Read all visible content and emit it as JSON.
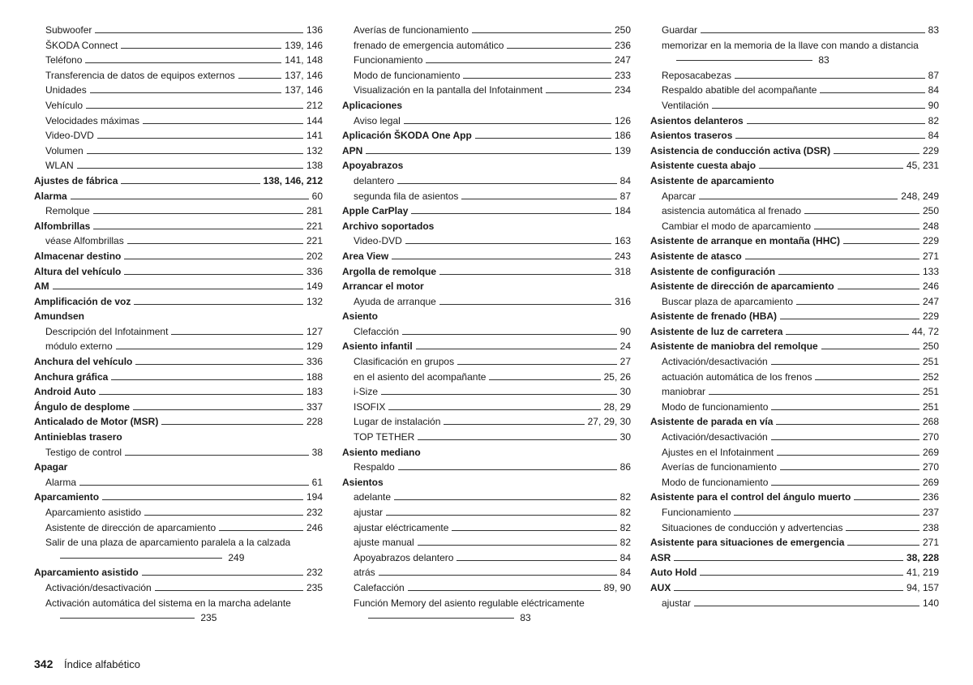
{
  "footer": {
    "page_number": "342",
    "section": "Índice alfabético"
  },
  "col1": [
    {
      "t": "sub",
      "label": "Subwoofer",
      "page": "136"
    },
    {
      "t": "sub",
      "label": "ŠKODA Connect",
      "page": "139, 146"
    },
    {
      "t": "sub",
      "label": "Teléfono",
      "page": "141, 148"
    },
    {
      "t": "sub",
      "label": "Transferencia de datos de equipos externos",
      "page": "137, 146"
    },
    {
      "t": "sub",
      "label": "Unidades",
      "page": "137, 146"
    },
    {
      "t": "sub",
      "label": "Vehículo",
      "page": "212"
    },
    {
      "t": "sub",
      "label": "Velocidades máximas",
      "page": "144"
    },
    {
      "t": "sub",
      "label": "Video-DVD",
      "page": "141"
    },
    {
      "t": "sub",
      "label": "Volumen",
      "page": "132"
    },
    {
      "t": "sub",
      "label": "WLAN",
      "page": "138"
    },
    {
      "t": "main",
      "bold": true,
      "label": "Ajustes de fábrica",
      "page": "138, 146, 212",
      "pbold": true
    },
    {
      "t": "main",
      "bold": true,
      "label": "Alarma",
      "page": "60"
    },
    {
      "t": "sub",
      "label": "Remolque",
      "page": "281"
    },
    {
      "t": "main",
      "bold": true,
      "label": "Alfombrillas",
      "page": "221"
    },
    {
      "t": "sub",
      "label": "véase Alfombrillas",
      "page": "221"
    },
    {
      "t": "main",
      "bold": true,
      "label": "Almacenar destino",
      "page": "202"
    },
    {
      "t": "main",
      "bold": true,
      "label": "Altura del vehículo",
      "page": "336"
    },
    {
      "t": "main",
      "bold": true,
      "label": "AM",
      "page": "149"
    },
    {
      "t": "main",
      "bold": true,
      "label": "Amplificación de voz",
      "page": "132"
    },
    {
      "t": "header",
      "bold": true,
      "label": "Amundsen"
    },
    {
      "t": "sub",
      "label": "Descripción del Infotainment",
      "page": "127"
    },
    {
      "t": "sub",
      "label": "módulo externo",
      "page": "129"
    },
    {
      "t": "main",
      "bold": true,
      "label": "Anchura del vehículo",
      "page": "336"
    },
    {
      "t": "main",
      "bold": true,
      "label": "Anchura gráfica",
      "page": "188"
    },
    {
      "t": "main",
      "bold": true,
      "label": "Android Auto",
      "page": "183"
    },
    {
      "t": "main",
      "bold": true,
      "label": "Ángulo de desplome",
      "page": "337"
    },
    {
      "t": "main",
      "bold": true,
      "label": "Anticalado de Motor (MSR)",
      "page": "228"
    },
    {
      "t": "header",
      "bold": true,
      "label": "Antinieblas trasero"
    },
    {
      "t": "sub",
      "label": "Testigo de control",
      "page": "38"
    },
    {
      "t": "header",
      "bold": true,
      "label": "Apagar"
    },
    {
      "t": "sub",
      "label": "Alarma",
      "page": "61"
    },
    {
      "t": "main",
      "bold": true,
      "label": "Aparcamiento",
      "page": "194"
    },
    {
      "t": "sub",
      "label": "Aparcamiento asistido",
      "page": "232"
    },
    {
      "t": "sub",
      "label": "Asistente de dirección de aparcamiento",
      "page": "246"
    },
    {
      "t": "hang",
      "label": "Salir de una plaza de aparcamiento paralela a la calzada",
      "page": "249",
      "lw": 200
    },
    {
      "t": "main",
      "bold": true,
      "label": "Aparcamiento asistido",
      "page": "232"
    },
    {
      "t": "sub",
      "label": "Activación/desactivación",
      "page": "235"
    },
    {
      "t": "hang",
      "label": "Activación automática del sistema en la marcha adelante",
      "page": "235",
      "lw": 166
    }
  ],
  "col2": [
    {
      "t": "sub",
      "label": "Averías de funcionamiento",
      "page": "250"
    },
    {
      "t": "sub",
      "label": "frenado de emergencia automático",
      "page": "236"
    },
    {
      "t": "sub",
      "label": "Funcionamiento",
      "page": "247"
    },
    {
      "t": "sub",
      "label": "Modo de funcionamiento",
      "page": "233"
    },
    {
      "t": "sub",
      "label": "Visualización en la pantalla del Infotainment",
      "page": "234"
    },
    {
      "t": "header",
      "bold": true,
      "label": "Aplicaciones"
    },
    {
      "t": "sub",
      "label": "Aviso legal",
      "page": "126"
    },
    {
      "t": "main",
      "bold": true,
      "label": "Aplicación ŠKODA One App",
      "page": "186"
    },
    {
      "t": "main",
      "bold": true,
      "label": "APN",
      "page": "139"
    },
    {
      "t": "header",
      "bold": true,
      "label": "Apoyabrazos"
    },
    {
      "t": "sub",
      "label": "delantero",
      "page": "84"
    },
    {
      "t": "sub",
      "label": "segunda fila de asientos",
      "page": "87"
    },
    {
      "t": "main",
      "bold": true,
      "label": "Apple CarPlay",
      "page": "184"
    },
    {
      "t": "header",
      "bold": true,
      "label": "Archivo soportados"
    },
    {
      "t": "sub",
      "label": "Video-DVD",
      "page": "163"
    },
    {
      "t": "main",
      "bold": true,
      "label": "Area View",
      "page": "243"
    },
    {
      "t": "main",
      "bold": true,
      "label": "Argolla de remolque",
      "page": "318"
    },
    {
      "t": "header",
      "bold": true,
      "label": "Arrancar el motor"
    },
    {
      "t": "sub",
      "label": "Ayuda de arranque",
      "page": "316"
    },
    {
      "t": "header",
      "bold": true,
      "label": "Asiento"
    },
    {
      "t": "sub",
      "label": "Clefacción",
      "page": "90"
    },
    {
      "t": "main",
      "bold": true,
      "label": "Asiento infantil",
      "page": "24"
    },
    {
      "t": "sub",
      "label": "Clasificación en grupos",
      "page": "27"
    },
    {
      "t": "sub",
      "label": "en el asiento del acompañante",
      "page": "25, 26"
    },
    {
      "t": "sub",
      "label": "i-Size",
      "page": "30"
    },
    {
      "t": "sub",
      "label": "ISOFIX",
      "page": "28, 29"
    },
    {
      "t": "sub",
      "label": "Lugar de instalación",
      "page": "27, 29, 30"
    },
    {
      "t": "sub",
      "label": "TOP TETHER",
      "page": "30"
    },
    {
      "t": "header",
      "bold": true,
      "label": "Asiento mediano"
    },
    {
      "t": "sub",
      "label": "Respaldo",
      "page": "86"
    },
    {
      "t": "header",
      "bold": true,
      "label": "Asientos"
    },
    {
      "t": "sub",
      "label": "adelante",
      "page": "82"
    },
    {
      "t": "sub",
      "label": "ajustar",
      "page": "82"
    },
    {
      "t": "sub",
      "label": "ajustar eléctricamente",
      "page": "82"
    },
    {
      "t": "sub",
      "label": "ajuste manual",
      "page": "82"
    },
    {
      "t": "sub",
      "label": "Apoyabrazos delantero",
      "page": "84"
    },
    {
      "t": "sub",
      "label": "atrás",
      "page": "84"
    },
    {
      "t": "sub",
      "label": "Calefacción",
      "page": "89, 90"
    },
    {
      "t": "hang",
      "label": "Función Memory del asiento regulable eléctricamente",
      "page": "83",
      "lw": 180
    }
  ],
  "col3": [
    {
      "t": "sub",
      "label": "Guardar",
      "page": "83"
    },
    {
      "t": "hang",
      "label": "memorizar en la memoria de la llave con mando a distancia",
      "page": "83",
      "lw": 168
    },
    {
      "t": "sub",
      "label": "Reposacabezas",
      "page": "87"
    },
    {
      "t": "sub",
      "label": "Respaldo abatible del acompañante",
      "page": "84"
    },
    {
      "t": "sub",
      "label": "Ventilación",
      "page": "90"
    },
    {
      "t": "main",
      "bold": true,
      "label": "Asientos delanteros",
      "page": "82"
    },
    {
      "t": "main",
      "bold": true,
      "label": "Asientos traseros",
      "page": "84"
    },
    {
      "t": "main",
      "bold": true,
      "label": "Asistencia de conducción activa (DSR)",
      "page": "229"
    },
    {
      "t": "main",
      "bold": true,
      "label": "Asistente cuesta abajo",
      "page": "45, 231"
    },
    {
      "t": "header",
      "bold": true,
      "label": "Asistente de aparcamiento"
    },
    {
      "t": "sub",
      "label": "Aparcar",
      "page": "248, 249"
    },
    {
      "t": "sub",
      "label": "asistencia automática al frenado",
      "page": "250"
    },
    {
      "t": "sub",
      "label": "Cambiar el modo de aparcamiento",
      "page": "248"
    },
    {
      "t": "main",
      "bold": true,
      "label": "Asistente de arranque en montaña (HHC)",
      "page": "229"
    },
    {
      "t": "main",
      "bold": true,
      "label": "Asistente de atasco",
      "page": "271"
    },
    {
      "t": "main",
      "bold": true,
      "label": "Asistente de configuración",
      "page": "133"
    },
    {
      "t": "main",
      "bold": true,
      "label": "Asistente de dirección de aparcamiento",
      "page": "246"
    },
    {
      "t": "sub",
      "label": "Buscar plaza de aparcamiento",
      "page": "247"
    },
    {
      "t": "main",
      "bold": true,
      "label": "Asistente de frenado (HBA)",
      "page": "229"
    },
    {
      "t": "main",
      "bold": true,
      "label": "Asistente de luz de carretera",
      "page": "44, 72"
    },
    {
      "t": "main",
      "bold": true,
      "label": "Asistente de maniobra del remolque",
      "page": "250"
    },
    {
      "t": "sub",
      "label": "Activación/desactivación",
      "page": "251"
    },
    {
      "t": "sub",
      "label": "actuación automática de los frenos",
      "page": "252"
    },
    {
      "t": "sub",
      "label": "maniobrar",
      "page": "251"
    },
    {
      "t": "sub",
      "label": "Modo de funcionamiento",
      "page": "251"
    },
    {
      "t": "main",
      "bold": true,
      "label": "Asistente de parada en vía",
      "page": "268"
    },
    {
      "t": "sub",
      "label": "Activación/desactivación",
      "page": "270"
    },
    {
      "t": "sub",
      "label": "Ajustes en el Infotainment",
      "page": "269"
    },
    {
      "t": "sub",
      "label": "Averías de funcionamiento",
      "page": "270"
    },
    {
      "t": "sub",
      "label": "Modo de funcionamiento",
      "page": "269"
    },
    {
      "t": "main",
      "bold": true,
      "label": "Asistente para el control del ángulo muerto",
      "page": "236"
    },
    {
      "t": "sub",
      "label": "Funcionamiento",
      "page": "237"
    },
    {
      "t": "sub",
      "label": "Situaciones de conducción y advertencias",
      "page": "238"
    },
    {
      "t": "main",
      "bold": true,
      "label": "Asistente para situaciones de emergencia",
      "page": "271"
    },
    {
      "t": "main",
      "bold": true,
      "label": "ASR",
      "page": "38, 228",
      "pbold": true
    },
    {
      "t": "main",
      "bold": true,
      "label": "Auto Hold",
      "page": "41, 219"
    },
    {
      "t": "main",
      "bold": true,
      "label": "AUX",
      "page": "94, 157"
    },
    {
      "t": "sub",
      "label": "ajustar",
      "page": "140"
    }
  ]
}
